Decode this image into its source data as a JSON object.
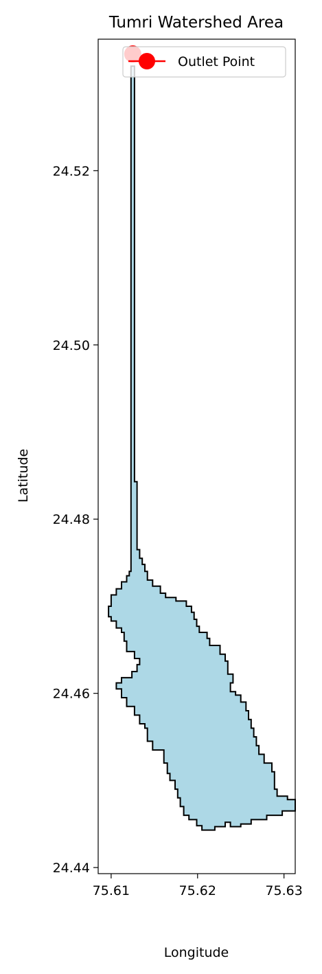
{
  "chart_data": {
    "type": "area",
    "title": "Tumri Watershed Area",
    "xlabel": "Longitude",
    "ylabel": "Latitude",
    "xlim": [
      75.6085,
      75.6313
    ],
    "ylim": [
      24.4393,
      24.5351
    ],
    "xticks": [
      75.61,
      75.62,
      75.63
    ],
    "xtick_labels": [
      "75.61",
      "75.62",
      "75.63"
    ],
    "yticks": [
      24.44,
      24.46,
      24.48,
      24.5,
      24.52
    ],
    "ytick_labels": [
      "24.44",
      "24.46",
      "24.48",
      "24.50",
      "24.52"
    ],
    "grid": false,
    "legend": {
      "placement": "top-right",
      "entries": [
        "Outlet Point"
      ]
    },
    "series": [
      {
        "type": "polygon",
        "fill": "#add8e6",
        "edge": "#000000",
        "points": [
          [
            75.6123,
            24.532
          ],
          [
            75.6127,
            24.532
          ],
          [
            75.6127,
            24.4843
          ],
          [
            75.613,
            24.4843
          ],
          [
            75.613,
            24.4765
          ],
          [
            75.6133,
            24.4765
          ],
          [
            75.6133,
            24.4755
          ],
          [
            75.6136,
            24.4755
          ],
          [
            75.6136,
            24.4748
          ],
          [
            75.6139,
            24.4748
          ],
          [
            75.6139,
            24.474
          ],
          [
            75.6142,
            24.474
          ],
          [
            75.6142,
            24.473
          ],
          [
            75.6148,
            24.473
          ],
          [
            75.6148,
            24.4723
          ],
          [
            75.6157,
            24.4723
          ],
          [
            75.6157,
            24.4715
          ],
          [
            75.6163,
            24.4715
          ],
          [
            75.6163,
            24.471
          ],
          [
            75.6175,
            24.471
          ],
          [
            75.6175,
            24.4706
          ],
          [
            75.6187,
            24.4706
          ],
          [
            75.6187,
            24.47
          ],
          [
            75.6193,
            24.47
          ],
          [
            75.6193,
            24.4693
          ],
          [
            75.6196,
            24.4693
          ],
          [
            75.6196,
            24.4685
          ],
          [
            75.6199,
            24.4685
          ],
          [
            75.6199,
            24.4677
          ],
          [
            75.6202,
            24.4677
          ],
          [
            75.6202,
            24.467
          ],
          [
            75.6211,
            24.467
          ],
          [
            75.6211,
            24.4663
          ],
          [
            75.6214,
            24.4663
          ],
          [
            75.6214,
            24.4655
          ],
          [
            75.6226,
            24.4655
          ],
          [
            75.6226,
            24.4645
          ],
          [
            75.6232,
            24.4645
          ],
          [
            75.6232,
            24.4637
          ],
          [
            75.6235,
            24.4637
          ],
          [
            75.6235,
            24.4622
          ],
          [
            75.6241,
            24.4622
          ],
          [
            75.6241,
            24.4612
          ],
          [
            75.6238,
            24.4612
          ],
          [
            75.6238,
            24.4602
          ],
          [
            75.6244,
            24.4602
          ],
          [
            75.6244,
            24.4598
          ],
          [
            75.625,
            24.4598
          ],
          [
            75.625,
            24.459
          ],
          [
            75.6256,
            24.459
          ],
          [
            75.6256,
            24.458
          ],
          [
            75.6259,
            24.458
          ],
          [
            75.6259,
            24.457
          ],
          [
            75.6262,
            24.457
          ],
          [
            75.6262,
            24.456
          ],
          [
            75.6265,
            24.456
          ],
          [
            75.6265,
            24.455
          ],
          [
            75.6268,
            24.455
          ],
          [
            75.6268,
            24.454
          ],
          [
            75.6271,
            24.454
          ],
          [
            75.6271,
            24.453
          ],
          [
            75.6277,
            24.453
          ],
          [
            75.6277,
            24.452
          ],
          [
            75.6286,
            24.452
          ],
          [
            75.6286,
            24.451
          ],
          [
            75.6289,
            24.451
          ],
          [
            75.6289,
            24.449
          ],
          [
            75.6292,
            24.449
          ],
          [
            75.6292,
            24.4482
          ],
          [
            75.6304,
            24.4482
          ],
          [
            75.6304,
            24.4478
          ],
          [
            75.6313,
            24.4478
          ],
          [
            75.6313,
            24.4465
          ],
          [
            75.6298,
            24.4465
          ],
          [
            75.6298,
            24.446
          ],
          [
            75.628,
            24.446
          ],
          [
            75.628,
            24.4455
          ],
          [
            75.6262,
            24.4455
          ],
          [
            75.6262,
            24.445
          ],
          [
            75.625,
            24.445
          ],
          [
            75.625,
            24.4447
          ],
          [
            75.6238,
            24.4447
          ],
          [
            75.6238,
            24.4452
          ],
          [
            75.6232,
            24.4452
          ],
          [
            75.6232,
            24.4447
          ],
          [
            75.622,
            24.4447
          ],
          [
            75.622,
            24.4443
          ],
          [
            75.6205,
            24.4443
          ],
          [
            75.6205,
            24.4448
          ],
          [
            75.6199,
            24.4448
          ],
          [
            75.6199,
            24.4455
          ],
          [
            75.619,
            24.4455
          ],
          [
            75.619,
            24.446
          ],
          [
            75.6184,
            24.446
          ],
          [
            75.6184,
            24.447
          ],
          [
            75.618,
            24.447
          ],
          [
            75.618,
            24.448
          ],
          [
            75.6177,
            24.448
          ],
          [
            75.6177,
            24.449
          ],
          [
            75.6174,
            24.449
          ],
          [
            75.6174,
            24.45
          ],
          [
            75.6168,
            24.45
          ],
          [
            75.6168,
            24.4508
          ],
          [
            75.6165,
            24.4508
          ],
          [
            75.6165,
            24.452
          ],
          [
            75.6161,
            24.452
          ],
          [
            75.6161,
            24.4535
          ],
          [
            75.6148,
            24.4535
          ],
          [
            75.6148,
            24.4545
          ],
          [
            75.6142,
            24.4545
          ],
          [
            75.6142,
            24.456
          ],
          [
            75.6139,
            24.456
          ],
          [
            75.6139,
            24.4565
          ],
          [
            75.6133,
            24.4565
          ],
          [
            75.6133,
            24.4575
          ],
          [
            75.6127,
            24.4575
          ],
          [
            75.6127,
            24.4585
          ],
          [
            75.6118,
            24.4585
          ],
          [
            75.6118,
            24.4595
          ],
          [
            75.6112,
            24.4595
          ],
          [
            75.6112,
            24.4605
          ],
          [
            75.6106,
            24.4605
          ],
          [
            75.6106,
            24.4612
          ],
          [
            75.6112,
            24.4612
          ],
          [
            75.6112,
            24.4618
          ],
          [
            75.6124,
            24.4618
          ],
          [
            75.6124,
            24.4625
          ],
          [
            75.613,
            24.4625
          ],
          [
            75.613,
            24.4633
          ],
          [
            75.6133,
            24.4633
          ],
          [
            75.6133,
            24.464
          ],
          [
            75.6127,
            24.464
          ],
          [
            75.6127,
            24.4648
          ],
          [
            75.6118,
            24.4648
          ],
          [
            75.6118,
            24.466
          ],
          [
            75.6115,
            24.466
          ],
          [
            75.6115,
            24.467
          ],
          [
            75.6112,
            24.467
          ],
          [
            75.6112,
            24.4675
          ],
          [
            75.6106,
            24.4675
          ],
          [
            75.6106,
            24.4683
          ],
          [
            75.61,
            24.4683
          ],
          [
            75.61,
            24.4688
          ],
          [
            75.6097,
            24.4688
          ],
          [
            75.6097,
            24.47
          ],
          [
            75.61,
            24.47
          ],
          [
            75.61,
            24.4713
          ],
          [
            75.6106,
            24.4713
          ],
          [
            75.6106,
            24.472
          ],
          [
            75.6112,
            24.472
          ],
          [
            75.6112,
            24.4728
          ],
          [
            75.6118,
            24.4728
          ],
          [
            75.6118,
            24.4735
          ],
          [
            75.6121,
            24.4735
          ],
          [
            75.6121,
            24.474
          ],
          [
            75.6123,
            24.474
          ]
        ]
      },
      {
        "type": "point",
        "name": "Outlet Point",
        "color": "#ff0000",
        "x": 75.6125,
        "y": 24.5334
      }
    ]
  }
}
